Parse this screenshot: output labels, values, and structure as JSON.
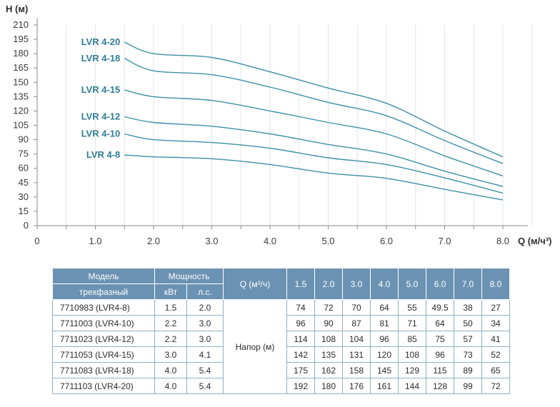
{
  "chart_data": {
    "type": "line",
    "xlabel": "Q (м/ч³)",
    "ylabel": "Н (м)",
    "xlim": [
      0,
      8
    ],
    "ylim": [
      0,
      210
    ],
    "x_ticks": [
      "0",
      "1.0",
      "2.0",
      "3.0",
      "4.0",
      "5.0",
      "6.0",
      "7.0",
      "8.0"
    ],
    "y_ticks": [
      "210",
      "195",
      "180",
      "165",
      "150",
      "135",
      "120",
      "105",
      "90",
      "75",
      "60",
      "45",
      "30",
      "15",
      "0"
    ],
    "grid": "vertical",
    "line_color": "#3e8fa6",
    "label_color": "#2f7d95",
    "x": [
      1.5,
      2.0,
      3.0,
      4.0,
      5.0,
      6.0,
      7.0,
      8.0
    ],
    "series": [
      {
        "name": "LVR 4-20",
        "values": [
          192,
          180,
          176,
          161,
          144,
          128,
          99,
          72
        ]
      },
      {
        "name": "LVR 4-18",
        "values": [
          175,
          162,
          158,
          145,
          129,
          115,
          89,
          65
        ]
      },
      {
        "name": "LVR 4-15",
        "values": [
          142,
          135,
          131,
          120,
          108,
          96,
          73,
          52
        ]
      },
      {
        "name": "LVR 4-12",
        "values": [
          114,
          108,
          104,
          96,
          85,
          75,
          57,
          41
        ]
      },
      {
        "name": "LVR 4-10",
        "values": [
          96,
          90,
          87,
          81,
          71,
          64,
          50,
          34
        ]
      },
      {
        "name": "LVR 4-8",
        "values": [
          74,
          72,
          70,
          64,
          55,
          49.5,
          38,
          27
        ]
      }
    ]
  },
  "table": {
    "h_model": "Модель",
    "h_model2": "трехфазный",
    "h_power": "Мощность",
    "h_kw": "кВт",
    "h_hp": "л.с.",
    "h_q": "Q (м³/ч)",
    "q_values": [
      "1.5",
      "2.0",
      "3.0",
      "4.0",
      "5.0",
      "6.0",
      "7.0",
      "8.0"
    ],
    "head_label": "Напор (м)",
    "rows": [
      {
        "model": "7710983 (LVR4-8)",
        "kw": "1.5",
        "hp": "2.0",
        "heads": [
          "74",
          "72",
          "70",
          "64",
          "55",
          "49.5",
          "38",
          "27"
        ]
      },
      {
        "model": "7711003 (LVR4-10)",
        "kw": "2.2",
        "hp": "3.0",
        "heads": [
          "96",
          "90",
          "87",
          "81",
          "71",
          "64",
          "50",
          "34"
        ]
      },
      {
        "model": "7711023 (LVR4-12)",
        "kw": "2.2",
        "hp": "3.0",
        "heads": [
          "114",
          "108",
          "104",
          "96",
          "85",
          "75",
          "57",
          "41"
        ]
      },
      {
        "model": "7711053 (LVR4-15)",
        "kw": "3.0",
        "hp": "4.1",
        "heads": [
          "142",
          "135",
          "131",
          "120",
          "108",
          "96",
          "73",
          "52"
        ]
      },
      {
        "model": "7711083 (LVR4-18)",
        "kw": "4.0",
        "hp": "5.4",
        "heads": [
          "175",
          "162",
          "158",
          "145",
          "129",
          "115",
          "89",
          "65"
        ]
      },
      {
        "model": "7711103 (LVR4-20)",
        "kw": "4.0",
        "hp": "5.4",
        "heads": [
          "192",
          "180",
          "176",
          "161",
          "144",
          "128",
          "99",
          "72"
        ]
      }
    ]
  }
}
